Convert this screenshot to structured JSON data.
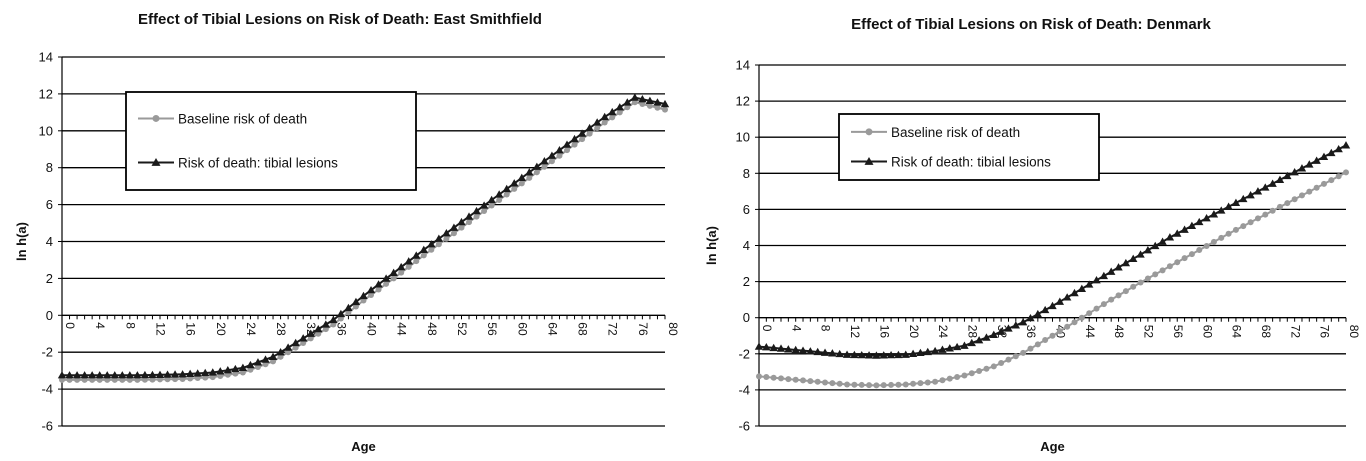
{
  "chart_data": [
    {
      "type": "line",
      "title": "Effect of Tibial Lesions on Risk of Death: East Smithfield",
      "xlabel": "Age",
      "ylabel": "ln h(a)",
      "xlim": [
        0,
        80
      ],
      "ylim": [
        -6,
        14
      ],
      "yticks": [
        "14",
        "12",
        "10",
        "8",
        "6",
        "4",
        "2",
        "0",
        "-2",
        "-4",
        "-6"
      ],
      "xticks": [
        "0",
        "4",
        "8",
        "12",
        "16",
        "20",
        "24",
        "28",
        "32",
        "36",
        "40",
        "44",
        "48",
        "52",
        "56",
        "60",
        "64",
        "68",
        "72",
        "76",
        "80"
      ],
      "grid": true,
      "legend_position": "upper-left",
      "series": [
        {
          "name": "Baseline risk of death",
          "color": "#9a9a9a",
          "marker": "circle",
          "points": [
            [
              0,
              -3.5
            ],
            [
              10,
              -3.5
            ],
            [
              16,
              -3.45
            ],
            [
              20,
              -3.35
            ],
            [
              24,
              -3.1
            ],
            [
              28,
              -2.5
            ],
            [
              32,
              -1.5
            ],
            [
              36,
              -0.5
            ],
            [
              40,
              0.8
            ],
            [
              44,
              2.0
            ],
            [
              48,
              3.25
            ],
            [
              52,
              4.45
            ],
            [
              56,
              5.65
            ],
            [
              60,
              6.85
            ],
            [
              64,
              8.05
            ],
            [
              68,
              9.25
            ],
            [
              72,
              10.45
            ],
            [
              76,
              11.55
            ],
            [
              80,
              11.15
            ]
          ]
        },
        {
          "name": "Risk of death: tibial lesions",
          "color": "#1a1a1a",
          "marker": "triangle",
          "points": [
            [
              0,
              -3.25
            ],
            [
              10,
              -3.25
            ],
            [
              16,
              -3.2
            ],
            [
              20,
              -3.1
            ],
            [
              24,
              -2.85
            ],
            [
              28,
              -2.25
            ],
            [
              32,
              -1.25
            ],
            [
              36,
              -0.25
            ],
            [
              40,
              1.05
            ],
            [
              44,
              2.3
            ],
            [
              48,
              3.55
            ],
            [
              52,
              4.75
            ],
            [
              56,
              5.95
            ],
            [
              60,
              7.15
            ],
            [
              64,
              8.35
            ],
            [
              68,
              9.55
            ],
            [
              72,
              10.75
            ],
            [
              76,
              11.8
            ],
            [
              80,
              11.45
            ]
          ]
        }
      ]
    },
    {
      "type": "line",
      "title": "Effect of Tibial Lesions on Risk of Death: Denmark",
      "xlabel": "Age",
      "ylabel": "ln h(a)",
      "xlim": [
        0,
        80
      ],
      "ylim": [
        -6,
        14
      ],
      "yticks": [
        "14",
        "12",
        "10",
        "8",
        "6",
        "4",
        "2",
        "0",
        "-2",
        "-4",
        "-6"
      ],
      "xticks": [
        "0",
        "4",
        "8",
        "12",
        "16",
        "20",
        "24",
        "28",
        "32",
        "36",
        "40",
        "44",
        "48",
        "52",
        "56",
        "60",
        "64",
        "68",
        "72",
        "76",
        "80"
      ],
      "grid": true,
      "legend_position": "upper-left",
      "series": [
        {
          "name": "Baseline risk of death",
          "color": "#9a9a9a",
          "marker": "circle",
          "points": [
            [
              0,
              -3.25
            ],
            [
              4,
              -3.4
            ],
            [
              8,
              -3.55
            ],
            [
              12,
              -3.7
            ],
            [
              16,
              -3.75
            ],
            [
              20,
              -3.7
            ],
            [
              24,
              -3.55
            ],
            [
              28,
              -3.2
            ],
            [
              32,
              -2.7
            ],
            [
              36,
              -1.95
            ],
            [
              40,
              -1.0
            ],
            [
              44,
              0.0
            ],
            [
              48,
              1.0
            ],
            [
              52,
              1.95
            ],
            [
              56,
              2.85
            ],
            [
              60,
              3.75
            ],
            [
              64,
              4.65
            ],
            [
              68,
              5.5
            ],
            [
              72,
              6.35
            ],
            [
              76,
              7.2
            ],
            [
              80,
              8.05
            ]
          ]
        },
        {
          "name": "Risk of death: tibial lesions",
          "color": "#1a1a1a",
          "marker": "triangle",
          "points": [
            [
              0,
              -1.6
            ],
            [
              4,
              -1.75
            ],
            [
              8,
              -1.9
            ],
            [
              12,
              -2.05
            ],
            [
              16,
              -2.1
            ],
            [
              20,
              -2.05
            ],
            [
              24,
              -1.85
            ],
            [
              28,
              -1.55
            ],
            [
              32,
              -0.95
            ],
            [
              36,
              -0.25
            ],
            [
              40,
              0.65
            ],
            [
              44,
              1.6
            ],
            [
              48,
              2.55
            ],
            [
              52,
              3.5
            ],
            [
              56,
              4.45
            ],
            [
              60,
              5.3
            ],
            [
              64,
              6.15
            ],
            [
              68,
              7.0
            ],
            [
              72,
              7.85
            ],
            [
              76,
              8.7
            ],
            [
              80,
              9.55
            ]
          ]
        }
      ]
    }
  ]
}
